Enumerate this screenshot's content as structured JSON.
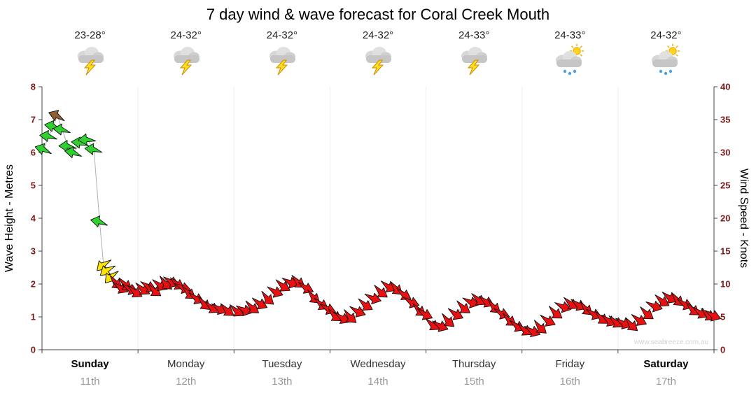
{
  "watermark": "www.seabreeze.com.au",
  "chart_data": {
    "type": "scatter",
    "subtype": "wind-arrow-forecast",
    "title": "7 day wind & wave forecast for Coral Creek Mouth",
    "x_axis": {
      "min_days": 0,
      "max_days": 7
    },
    "y_left": {
      "label": "Wave Height - Metres",
      "min": 0,
      "max": 8,
      "ticks": [
        0,
        1,
        2,
        3,
        4,
        5,
        6,
        7,
        8
      ]
    },
    "y_right": {
      "label": "Wind Speed - Knots",
      "min": 0,
      "max": 40,
      "ticks": [
        0,
        5,
        10,
        15,
        20,
        25,
        30,
        35,
        40
      ]
    },
    "grid": "faint vertical day separators",
    "legend": "none",
    "colors": {
      "tick": "#7c1a1a",
      "line": "#b0b0b0",
      "axis": "#444444",
      "grid": "#ececec",
      "watermark": "#d2d2d2",
      "date_text": "#999999"
    },
    "days": [
      {
        "name": "Sunday",
        "date": "11th",
        "temp": "23-28°",
        "icon": "storm",
        "bold": true
      },
      {
        "name": "Monday",
        "date": "12th",
        "temp": "24-32°",
        "icon": "storm",
        "bold": false
      },
      {
        "name": "Tuesday",
        "date": "13th",
        "temp": "24-32°",
        "icon": "storm",
        "bold": false
      },
      {
        "name": "Wednesday",
        "date": "14th",
        "temp": "24-32°",
        "icon": "storm",
        "bold": false
      },
      {
        "name": "Thursday",
        "date": "15th",
        "temp": "24-33°",
        "icon": "storm",
        "bold": false
      },
      {
        "name": "Friday",
        "date": "16th",
        "temp": "24-33°",
        "icon": "sun-shower",
        "bold": false
      },
      {
        "name": "Saturday",
        "date": "17th",
        "temp": "24-32°",
        "icon": "sun-shower",
        "bold": true
      }
    ],
    "color_scale": [
      {
        "max_knots": 10.4,
        "color": "#e81010"
      },
      {
        "max_knots": 14.0,
        "color": "#ffe400"
      },
      {
        "max_knots": 35.0,
        "color": "#2fd12f"
      },
      {
        "max_knots": 99.0,
        "color": "#92602f"
      }
    ],
    "series": [
      {
        "name": "Wind speed and direction",
        "unit": "knots",
        "axis": "right",
        "point_format": [
          "time_days",
          "knots",
          "arrow_angle_deg_cw_from_east"
        ],
        "points": [
          [
            0.02,
            30.5,
            195
          ],
          [
            0.07,
            32.5,
            185
          ],
          [
            0.12,
            34.0,
            190
          ],
          [
            0.16,
            35.6,
            200
          ],
          [
            0.21,
            33.5,
            185
          ],
          [
            0.27,
            31.0,
            180
          ],
          [
            0.33,
            30.0,
            190
          ],
          [
            0.4,
            31.5,
            185
          ],
          [
            0.47,
            32.0,
            175
          ],
          [
            0.54,
            30.5,
            185
          ],
          [
            0.6,
            19.5,
            190
          ],
          [
            0.64,
            13.0,
            135
          ],
          [
            0.68,
            12.2,
            140
          ],
          [
            0.72,
            11.2,
            130
          ],
          [
            0.76,
            10.2,
            40
          ],
          [
            0.81,
            9.4,
            25
          ],
          [
            0.86,
            9.9,
            35
          ],
          [
            0.91,
            9.2,
            20
          ],
          [
            0.96,
            8.8,
            30
          ],
          [
            1.04,
            9.2,
            30
          ],
          [
            1.1,
            9.6,
            20
          ],
          [
            1.16,
            9.0,
            35
          ],
          [
            1.22,
            9.8,
            25
          ],
          [
            1.28,
            10.1,
            40
          ],
          [
            1.34,
            10.3,
            20
          ],
          [
            1.4,
            10.0,
            30
          ],
          [
            1.46,
            9.4,
            15
          ],
          [
            1.52,
            8.6,
            35
          ],
          [
            1.6,
            7.8,
            25
          ],
          [
            1.68,
            7.0,
            40
          ],
          [
            1.76,
            6.4,
            30
          ],
          [
            1.84,
            6.2,
            20
          ],
          [
            1.92,
            6.0,
            35
          ],
          [
            2.02,
            5.9,
            30
          ],
          [
            2.1,
            6.0,
            15
          ],
          [
            2.18,
            6.4,
            35
          ],
          [
            2.26,
            7.0,
            25
          ],
          [
            2.34,
            7.8,
            40
          ],
          [
            2.42,
            8.8,
            20
          ],
          [
            2.5,
            9.7,
            30
          ],
          [
            2.58,
            10.2,
            15
          ],
          [
            2.66,
            10.3,
            35
          ],
          [
            2.74,
            9.4,
            25
          ],
          [
            2.82,
            8.0,
            40
          ],
          [
            2.9,
            6.9,
            30
          ],
          [
            2.97,
            6.2,
            20
          ],
          [
            3.04,
            5.2,
            35
          ],
          [
            3.12,
            4.8,
            25
          ],
          [
            3.2,
            5.0,
            40
          ],
          [
            3.28,
            5.8,
            20
          ],
          [
            3.36,
            6.8,
            30
          ],
          [
            3.44,
            7.8,
            15
          ],
          [
            3.52,
            8.8,
            35
          ],
          [
            3.6,
            9.6,
            25
          ],
          [
            3.68,
            9.3,
            40
          ],
          [
            3.76,
            8.4,
            30
          ],
          [
            3.84,
            7.2,
            20
          ],
          [
            3.92,
            6.0,
            35
          ],
          [
            3.98,
            5.4,
            25
          ],
          [
            4.06,
            3.8,
            30
          ],
          [
            4.14,
            3.6,
            20
          ],
          [
            4.22,
            4.4,
            40
          ],
          [
            4.3,
            5.4,
            25
          ],
          [
            4.38,
            6.4,
            35
          ],
          [
            4.46,
            7.2,
            15
          ],
          [
            4.54,
            7.6,
            30
          ],
          [
            4.62,
            7.3,
            25
          ],
          [
            4.7,
            6.5,
            40
          ],
          [
            4.78,
            5.5,
            20
          ],
          [
            4.86,
            4.5,
            35
          ],
          [
            4.94,
            3.6,
            25
          ],
          [
            5.02,
            3.0,
            30
          ],
          [
            5.1,
            2.8,
            20
          ],
          [
            5.18,
            3.4,
            40
          ],
          [
            5.26,
            4.4,
            25
          ],
          [
            5.34,
            5.6,
            35
          ],
          [
            5.42,
            6.5,
            15
          ],
          [
            5.5,
            7.0,
            30
          ],
          [
            5.58,
            6.8,
            25
          ],
          [
            5.66,
            6.2,
            40
          ],
          [
            5.74,
            5.4,
            20
          ],
          [
            5.82,
            4.8,
            35
          ],
          [
            5.9,
            4.4,
            25
          ],
          [
            5.97,
            4.2,
            30
          ],
          [
            6.05,
            4.0,
            20
          ],
          [
            6.13,
            3.8,
            40
          ],
          [
            6.21,
            4.5,
            25
          ],
          [
            6.29,
            5.5,
            35
          ],
          [
            6.37,
            6.6,
            15
          ],
          [
            6.45,
            7.4,
            30
          ],
          [
            6.53,
            7.9,
            25
          ],
          [
            6.61,
            7.6,
            40
          ],
          [
            6.69,
            6.9,
            20
          ],
          [
            6.77,
            6.1,
            35
          ],
          [
            6.85,
            5.6,
            25
          ],
          [
            6.93,
            5.3,
            30
          ],
          [
            6.98,
            5.2,
            20
          ]
        ]
      }
    ]
  }
}
